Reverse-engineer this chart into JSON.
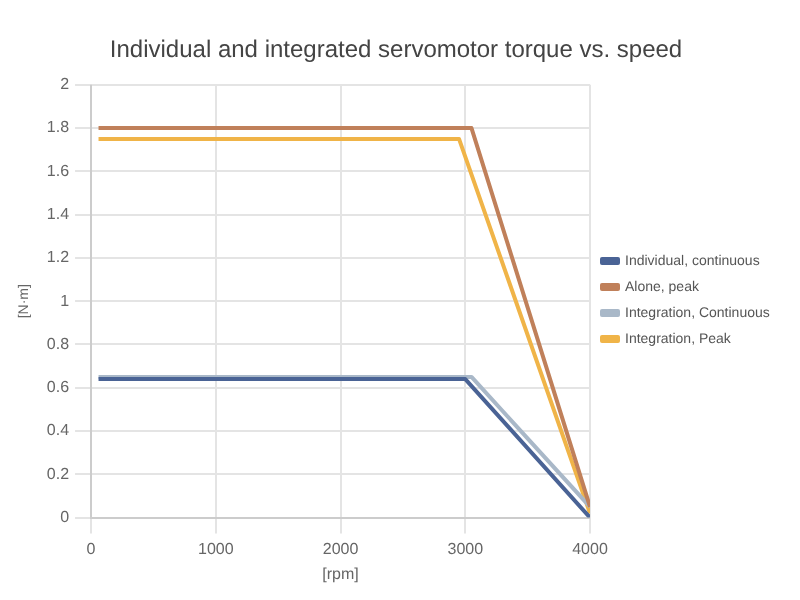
{
  "chart_data": {
    "type": "line",
    "title": "Individual and integrated servomotor torque vs. speed",
    "xlabel": "[rpm]",
    "ylabel": "[N·m]",
    "xlim": [
      0,
      4000
    ],
    "xticks": [
      0,
      1000,
      2000,
      3000,
      4000
    ],
    "ylim": [
      0,
      2
    ],
    "yticks": [
      0,
      0.2,
      0.4,
      0.6,
      0.8,
      1,
      1.2,
      1.4,
      1.6,
      1.8,
      2
    ],
    "grid": true,
    "legend": "right",
    "marker": "none",
    "series": [
      {
        "name": "Individual, continuous",
        "color": "#4a6395",
        "x": [
          60,
          3000,
          4000
        ],
        "values": [
          0.64,
          0.64,
          0
        ]
      },
      {
        "name": "Alone, peak",
        "color": "#c0805a",
        "x": [
          60,
          3050,
          4000
        ],
        "values": [
          1.8,
          1.8,
          0.05
        ]
      },
      {
        "name": "Integration, Continuous",
        "color": "#a9b8c8",
        "x": [
          60,
          3050,
          4000
        ],
        "values": [
          0.65,
          0.65,
          0.05
        ]
      },
      {
        "name": "Integration, Peak",
        "color": "#f0b448",
        "x": [
          60,
          2950,
          4000
        ],
        "values": [
          1.75,
          1.75,
          0.02
        ]
      }
    ]
  }
}
